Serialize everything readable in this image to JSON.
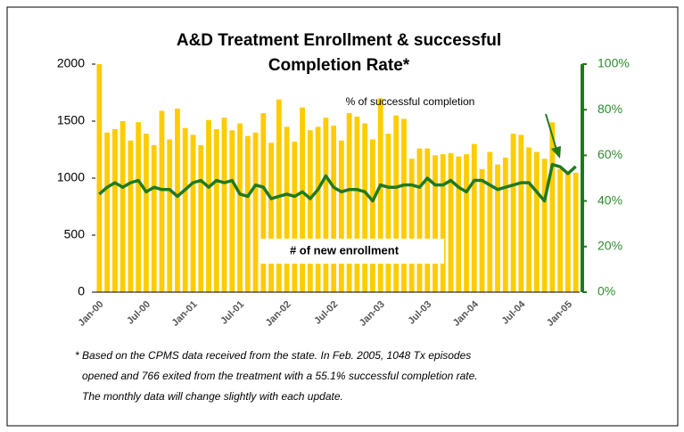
{
  "chart_data": {
    "type": "bar-line",
    "title": [
      "A&D Treatment Enrollment & successful",
      "Completion Rate*"
    ],
    "categories": [
      "Jan-00",
      null,
      null,
      null,
      null,
      null,
      "Jul-00",
      null,
      null,
      null,
      null,
      null,
      "Jan-01",
      null,
      null,
      null,
      null,
      null,
      "Jul-01",
      null,
      null,
      null,
      null,
      null,
      "Jan-02",
      null,
      null,
      null,
      null,
      null,
      "Jul-02",
      null,
      null,
      null,
      null,
      null,
      "Jan-03",
      null,
      null,
      null,
      null,
      null,
      "Jul-03",
      null,
      null,
      null,
      null,
      null,
      "Jan-04",
      null,
      null,
      null,
      null,
      null,
      "Jul-04",
      null,
      null,
      null,
      null,
      null,
      "Jan-05",
      null
    ],
    "series": [
      {
        "name": "# of new enrollment",
        "color": "#ffcc00",
        "values": [
          2000,
          1400,
          1430,
          1500,
          1330,
          1490,
          1390,
          1290,
          1590,
          1340,
          1610,
          1440,
          1380,
          1290,
          1510,
          1430,
          1530,
          1420,
          1480,
          1370,
          1400,
          1570,
          1310,
          1690,
          1450,
          1320,
          1620,
          1420,
          1450,
          1530,
          1460,
          1330,
          1570,
          1540,
          1480,
          1340,
          1700,
          1390,
          1550,
          1520,
          1170,
          1260,
          1260,
          1200,
          1210,
          1220,
          1190,
          1210,
          1300,
          1080,
          1230,
          1120,
          1180,
          1390,
          1380,
          1270,
          1230,
          1170,
          1490,
          1080,
          1060,
          1048
        ]
      },
      {
        "name": "% of successful completion",
        "color": "#1f7a1f",
        "axis": "y2",
        "values": [
          43,
          46,
          48,
          46,
          48,
          49,
          44,
          46,
          45,
          45,
          42,
          45,
          48,
          49,
          46,
          49,
          48,
          49,
          43,
          42,
          47,
          46,
          41,
          42,
          43,
          42,
          44,
          41,
          45,
          51,
          46,
          44,
          45,
          45,
          44,
          40,
          47,
          46,
          46,
          47,
          47,
          46,
          50,
          47,
          47,
          49,
          46,
          44,
          49,
          49,
          47,
          45,
          46,
          47,
          48,
          48,
          44,
          40,
          56,
          55,
          52,
          55.1
        ]
      }
    ],
    "ylim": [
      0,
      2000
    ],
    "yticks": [
      0,
      500,
      1000,
      1500,
      2000
    ],
    "y2lim": [
      0,
      100
    ],
    "y2ticks": [
      {
        "value": 0,
        "label": "0%"
      },
      {
        "value": 20,
        "label": "20%"
      },
      {
        "value": 40,
        "label": "40%"
      },
      {
        "value": 60,
        "label": "60%"
      },
      {
        "value": 80,
        "label": "80%"
      },
      {
        "value": 100,
        "label": "100%"
      }
    ],
    "y2axis_color": "#1f7a1f",
    "footnote": [
      "* Based on the CPMS data received from the state. In Feb. 2005, 1048 Tx episodes",
      "opened and 766 exited from the treatment with a 55.1% successful completion rate.",
      "The monthly data will change slightly with each update."
    ]
  }
}
